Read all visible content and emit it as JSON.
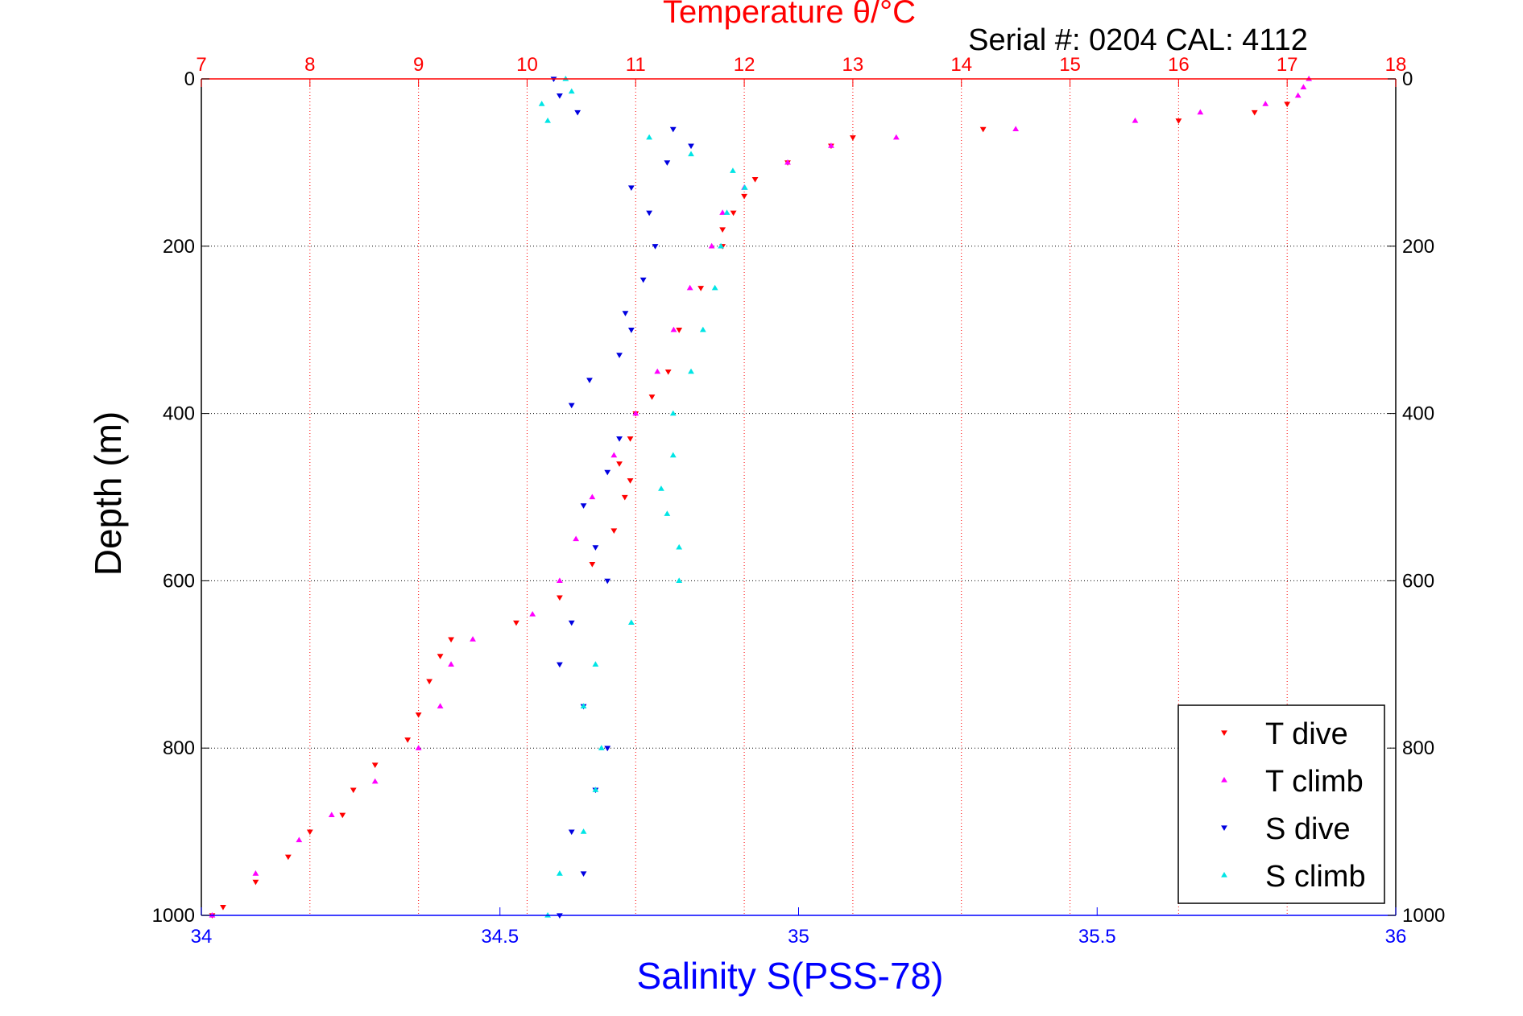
{
  "chart_data": {
    "type": "scatter",
    "title": "Temperature θ/°C",
    "subtitle": "Serial #: 0204  CAL: 4112",
    "ylabel": "Depth (m)",
    "xlabel_bottom": "Salinity S(PSS-78)",
    "x_top": {
      "label": "Temperature θ/°C",
      "lim": [
        7,
        18
      ],
      "ticks": [
        7,
        8,
        9,
        10,
        11,
        12,
        13,
        14,
        15,
        16,
        17,
        18
      ]
    },
    "x_bottom": {
      "label": "Salinity S(PSS-78)",
      "lim": [
        34,
        36
      ],
      "ticks": [
        "34",
        "34.5",
        "35",
        "35.5",
        "36"
      ]
    },
    "y": {
      "lim": [
        0,
        1000
      ],
      "reversed": true,
      "ticks": [
        0,
        200,
        400,
        600,
        800,
        1000
      ]
    },
    "grid": true,
    "legend_position": "bottom-right",
    "legend": [
      "T dive",
      "T climb",
      "S dive",
      "S climb"
    ],
    "series": [
      {
        "name": "T dive",
        "axis": "temperature",
        "color": "#ff0000",
        "marker": "triangle-down",
        "depth": [
          30,
          40,
          50,
          60,
          70,
          80,
          100,
          120,
          140,
          160,
          180,
          200,
          250,
          300,
          350,
          380,
          400,
          430,
          460,
          480,
          500,
          540,
          580,
          620,
          650,
          670,
          690,
          720,
          760,
          790,
          820,
          850,
          880,
          900,
          930,
          960,
          990,
          1000
        ],
        "temp": [
          17.0,
          16.7,
          16.0,
          14.2,
          13.0,
          12.8,
          12.4,
          12.1,
          12.0,
          11.9,
          11.8,
          11.8,
          11.6,
          11.4,
          11.3,
          11.15,
          11.0,
          10.95,
          10.85,
          10.95,
          10.9,
          10.8,
          10.6,
          10.3,
          9.9,
          9.3,
          9.2,
          9.1,
          9.0,
          8.9,
          8.6,
          8.4,
          8.3,
          8.0,
          7.8,
          7.5,
          7.2,
          7.1
        ]
      },
      {
        "name": "T climb",
        "axis": "temperature",
        "color": "#ff00ff",
        "marker": "triangle-up",
        "depth": [
          0,
          10,
          20,
          30,
          40,
          50,
          60,
          70,
          80,
          100,
          130,
          160,
          200,
          250,
          300,
          350,
          400,
          450,
          500,
          550,
          600,
          640,
          670,
          700,
          750,
          800,
          840,
          880,
          910,
          950,
          1000
        ],
        "temp": [
          17.2,
          17.15,
          17.1,
          16.8,
          16.2,
          15.6,
          14.5,
          13.4,
          12.8,
          12.4,
          12.0,
          11.8,
          11.7,
          11.5,
          11.35,
          11.2,
          11.0,
          10.8,
          10.6,
          10.45,
          10.3,
          10.05,
          9.5,
          9.3,
          9.2,
          9.0,
          8.6,
          8.2,
          7.9,
          7.5,
          7.1
        ]
      },
      {
        "name": "S dive",
        "axis": "salinity",
        "color": "#0000e0",
        "marker": "triangle-down",
        "depth": [
          0,
          20,
          40,
          60,
          80,
          100,
          130,
          160,
          200,
          240,
          280,
          300,
          330,
          360,
          390,
          430,
          470,
          510,
          560,
          600,
          650,
          700,
          750,
          800,
          850,
          900,
          950,
          1000
        ],
        "sal": [
          34.59,
          34.6,
          34.63,
          34.79,
          34.82,
          34.78,
          34.72,
          34.75,
          34.76,
          34.74,
          34.71,
          34.72,
          34.7,
          34.65,
          34.62,
          34.7,
          34.68,
          34.64,
          34.66,
          34.68,
          34.62,
          34.6,
          34.64,
          34.68,
          34.66,
          34.62,
          34.64,
          34.6
        ]
      },
      {
        "name": "S climb",
        "axis": "salinity",
        "color": "#00e5e5",
        "marker": "triangle-up",
        "depth": [
          0,
          15,
          30,
          50,
          70,
          90,
          110,
          130,
          160,
          200,
          250,
          300,
          350,
          400,
          450,
          490,
          520,
          560,
          600,
          650,
          700,
          750,
          800,
          850,
          900,
          950,
          1000
        ],
        "sal": [
          34.61,
          34.62,
          34.57,
          34.58,
          34.75,
          34.82,
          34.89,
          34.91,
          34.88,
          34.87,
          34.86,
          34.84,
          34.82,
          34.79,
          34.79,
          34.77,
          34.78,
          34.8,
          34.8,
          34.72,
          34.66,
          34.64,
          34.67,
          34.66,
          34.64,
          34.6,
          34.58
        ]
      }
    ]
  }
}
